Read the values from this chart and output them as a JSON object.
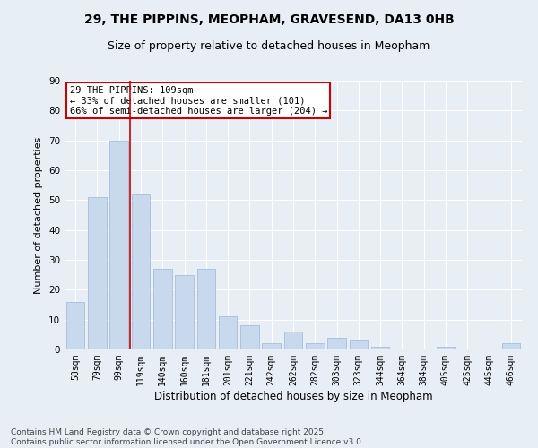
{
  "title": "29, THE PIPPINS, MEOPHAM, GRAVESEND, DA13 0HB",
  "subtitle": "Size of property relative to detached houses in Meopham",
  "xlabel": "Distribution of detached houses by size in Meopham",
  "ylabel": "Number of detached properties",
  "categories": [
    "58sqm",
    "79sqm",
    "99sqm",
    "119sqm",
    "140sqm",
    "160sqm",
    "181sqm",
    "201sqm",
    "221sqm",
    "242sqm",
    "262sqm",
    "282sqm",
    "303sqm",
    "323sqm",
    "344sqm",
    "364sqm",
    "384sqm",
    "405sqm",
    "425sqm",
    "445sqm",
    "466sqm"
  ],
  "values": [
    16,
    51,
    70,
    52,
    27,
    25,
    27,
    11,
    8,
    2,
    6,
    2,
    4,
    3,
    1,
    0,
    0,
    1,
    0,
    0,
    2
  ],
  "bar_color": "#c8d9ee",
  "bar_edge_color": "#a8bfd8",
  "vline_x": 2.5,
  "vline_color": "#cc0000",
  "annotation_text": "29 THE PIPPINS: 109sqm\n← 33% of detached houses are smaller (101)\n66% of semi-detached houses are larger (204) →",
  "annotation_box_color": "#ffffff",
  "annotation_box_edge_color": "#cc0000",
  "ylim": [
    0,
    90
  ],
  "yticks": [
    0,
    10,
    20,
    30,
    40,
    50,
    60,
    70,
    80,
    90
  ],
  "bg_color": "#e8eef5",
  "plot_bg_color": "#e8eef5",
  "footer": "Contains HM Land Registry data © Crown copyright and database right 2025.\nContains public sector information licensed under the Open Government Licence v3.0.",
  "title_fontsize": 10,
  "subtitle_fontsize": 9,
  "annotation_fontsize": 7.5,
  "footer_fontsize": 6.5,
  "ylabel_fontsize": 8,
  "xlabel_fontsize": 8.5
}
